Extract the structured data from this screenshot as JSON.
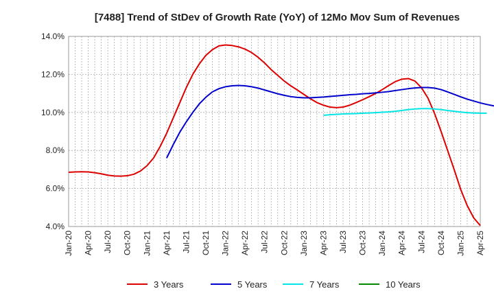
{
  "chart_data": {
    "type": "line",
    "title": "[7488]  Trend of StDev of Growth Rate (YoY) of 12Mo Mov Sum of Revenues",
    "xlabel": "",
    "ylabel": "",
    "ylim": [
      4.0,
      14.0
    ],
    "y_ticks": [
      4.0,
      6.0,
      8.0,
      10.0,
      12.0,
      14.0
    ],
    "y_tick_labels": [
      "4.0%",
      "6.0%",
      "8.0%",
      "10.0%",
      "12.0%",
      "14.0%"
    ],
    "x_tick_labels": [
      "Jan-20",
      "Apr-20",
      "Jul-20",
      "Oct-20",
      "Jan-21",
      "Apr-21",
      "Jul-21",
      "Oct-21",
      "Jan-22",
      "Apr-22",
      "Jul-22",
      "Oct-22",
      "Jan-23",
      "Apr-23",
      "Jul-23",
      "Oct-23",
      "Jan-24",
      "Apr-24",
      "Jul-24",
      "Oct-24",
      "Jan-25",
      "Apr-25"
    ],
    "x_start": "Jan-20",
    "x_end": "Apr-25",
    "grid": true,
    "legend_position": "bottom",
    "series": [
      {
        "name": "3 Years",
        "color": "#dd0000",
        "start": "Jan-20",
        "values": [
          6.85,
          6.87,
          6.88,
          6.87,
          6.83,
          6.77,
          6.7,
          6.66,
          6.65,
          6.67,
          6.75,
          6.92,
          7.2,
          7.6,
          8.2,
          8.9,
          9.7,
          10.5,
          11.3,
          12.0,
          12.55,
          13.0,
          13.3,
          13.5,
          13.55,
          13.52,
          13.45,
          13.33,
          13.15,
          12.9,
          12.6,
          12.25,
          11.95,
          11.65,
          11.4,
          11.18,
          10.95,
          10.72,
          10.52,
          10.38,
          10.28,
          10.25,
          10.28,
          10.38,
          10.52,
          10.67,
          10.83,
          11.0,
          11.2,
          11.42,
          11.62,
          11.75,
          11.78,
          11.65,
          11.3,
          10.75,
          9.95,
          9.0,
          8.0,
          7.0,
          5.95,
          5.1,
          4.45,
          4.05
        ]
      },
      {
        "name": "5 Years",
        "color": "#0000cc",
        "start": "Apr-21",
        "values": [
          7.6,
          8.3,
          8.95,
          9.5,
          10.0,
          10.45,
          10.8,
          11.08,
          11.25,
          11.35,
          11.4,
          11.42,
          11.4,
          11.35,
          11.28,
          11.18,
          11.08,
          10.98,
          10.9,
          10.83,
          10.79,
          10.77,
          10.77,
          10.79,
          10.81,
          10.84,
          10.87,
          10.9,
          10.93,
          10.95,
          10.98,
          11.0,
          11.03,
          11.06,
          11.1,
          11.15,
          11.2,
          11.25,
          11.29,
          11.31,
          11.31,
          11.28,
          11.2,
          11.08,
          10.95,
          10.82,
          10.7,
          10.6,
          10.5,
          10.42,
          10.35,
          10.3
        ]
      },
      {
        "name": "7 Years",
        "color": "#00e5e5",
        "start": "Apr-23",
        "values": [
          9.85,
          9.88,
          9.9,
          9.92,
          9.93,
          9.94,
          9.96,
          9.97,
          9.99,
          10.01,
          10.03,
          10.06,
          10.1,
          10.15,
          10.18,
          10.2,
          10.2,
          10.18,
          10.15,
          10.1,
          10.06,
          10.02,
          9.99,
          9.97,
          9.96,
          9.96
        ]
      },
      {
        "name": "10 Years",
        "color": "#008800",
        "start": "Apr-25",
        "values": []
      }
    ]
  }
}
